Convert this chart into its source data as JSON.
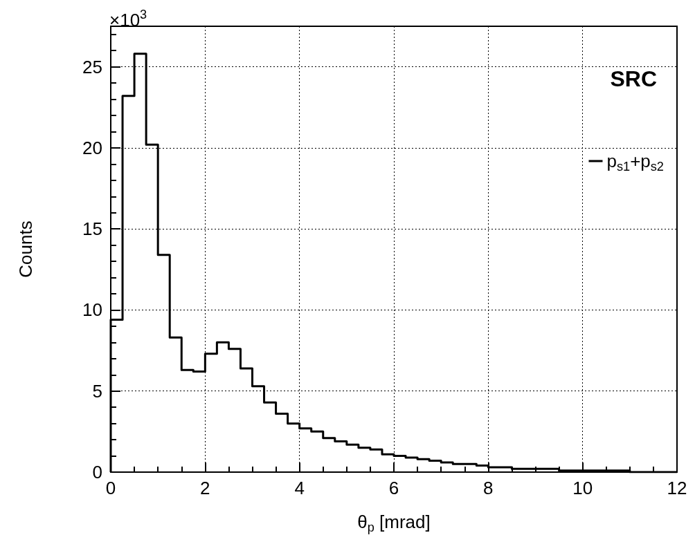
{
  "chart_data": {
    "type": "histogram",
    "xlabel": "θ$_{p}$ [mrad]",
    "ylabel": "Counts",
    "bins": [
      0,
      0.25,
      0.5,
      0.75,
      1,
      1.25,
      1.5,
      1.75,
      2,
      2.25,
      2.5,
      2.75,
      3,
      3.25,
      3.5,
      3.75,
      4,
      4.25,
      4.5,
      4.75,
      5,
      5.25,
      5.5,
      5.75,
      6,
      6.25,
      6.5,
      6.75,
      7,
      7.25,
      7.5,
      7.75,
      8,
      8.25,
      8.5,
      8.75,
      9,
      9.25,
      9.5,
      9.75,
      10,
      10.25,
      10.5,
      10.75,
      11,
      11.25,
      11.5,
      11.75,
      12
    ],
    "series": [
      {
        "name": "p$_{s1}$+p$_{s2}$",
        "color": "#000000",
        "values": [
          9.4,
          23.2,
          25.8,
          20.2,
          13.4,
          8.3,
          6.3,
          6.2,
          7.3,
          8.0,
          7.6,
          6.4,
          5.3,
          4.3,
          3.6,
          3.0,
          2.7,
          2.5,
          2.1,
          1.9,
          1.7,
          1.5,
          1.4,
          1.1,
          1.0,
          0.9,
          0.8,
          0.7,
          0.6,
          0.5,
          0.5,
          0.4,
          0.3,
          0.3,
          0.2,
          0.2,
          0.2,
          0.2,
          0.1,
          0.1,
          0.1,
          0.1,
          0.1,
          0.1,
          0.0,
          0.0,
          0.0,
          0.0
        ]
      }
    ],
    "xlim": [
      0,
      12
    ],
    "xticks": [
      0,
      2,
      4,
      6,
      8,
      10,
      12
    ],
    "ylim": [
      0,
      27.5
    ],
    "yticks": [
      0,
      5,
      10,
      15,
      20,
      25
    ],
    "grid": true,
    "legend": "top right",
    "line_style": "solid",
    "marker": "none",
    "annotations": [
      "×10$^{3}$",
      "SRC"
    ]
  }
}
